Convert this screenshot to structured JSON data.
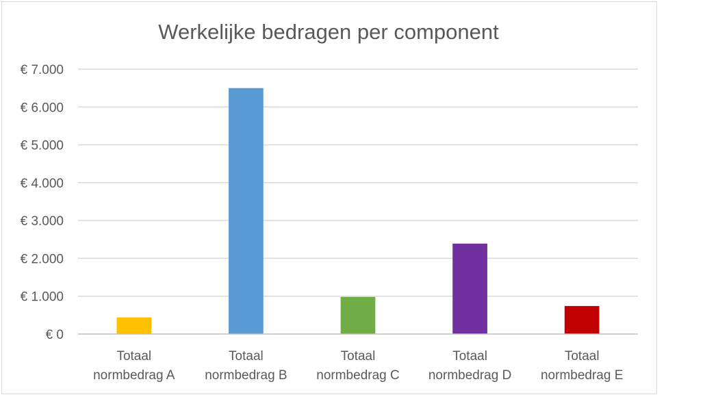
{
  "chart_data": {
    "type": "bar",
    "title": "Werkelijke bedragen per component",
    "xlabel": "",
    "ylabel": "",
    "ylim": [
      0,
      7000
    ],
    "yticks": [
      0,
      1000,
      2000,
      3000,
      4000,
      5000,
      6000,
      7000
    ],
    "ytick_labels": [
      "€ 0",
      "€ 1.000",
      "€ 2.000",
      "€ 3.000",
      "€ 4.000",
      "€ 5.000",
      "€ 6.000",
      "€ 7.000"
    ],
    "grid": true,
    "legend": "none",
    "categories": [
      {
        "line1": "Totaal",
        "line2": "normbedrag A"
      },
      {
        "line1": "Totaal",
        "line2": "normbedrag B"
      },
      {
        "line1": "Totaal",
        "line2": "normbedrag C"
      },
      {
        "line1": "Totaal",
        "line2": "normbedrag D"
      },
      {
        "line1": "Totaal",
        "line2": "normbedrag E"
      }
    ],
    "values": [
      440,
      6500,
      980,
      2390,
      740
    ],
    "colors": [
      "#FFC000",
      "#5B9BD5",
      "#70AD47",
      "#7030A0",
      "#C00000"
    ]
  }
}
